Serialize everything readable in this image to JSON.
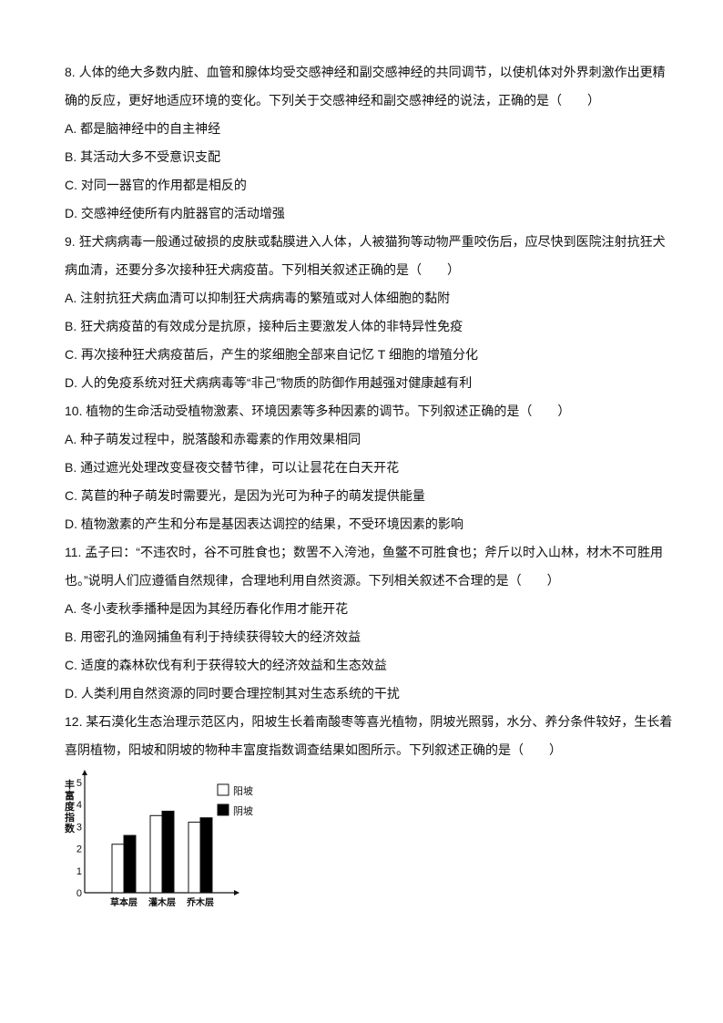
{
  "questions": [
    {
      "stem": "8. 人体的绝大多数内脏、血管和腺体均受交感神经和副交感神经的共同调节，以使机体对外界刺激作出更精确的反应，更好地适应环境的变化。下列关于交感神经和副交感神经的说法，正确的是（　　）",
      "options": [
        "A. 都是脑神经中的自主神经",
        "B. 其活动大多不受意识支配",
        "C. 对同一器官的作用都是相反的",
        "D. 交感神经使所有内脏器官的活动增强"
      ]
    },
    {
      "stem": "9. 狂犬病病毒一般通过破损的皮肤或黏膜进入人体，人被猫狗等动物严重咬伤后，应尽快到医院注射抗狂犬病血清，还要分多次接种狂犬病疫苗。下列相关叙述正确的是（　　）",
      "options": [
        "A. 注射抗狂犬病血清可以抑制狂犬病病毒的繁殖或对人体细胞的黏附",
        "B. 狂犬病疫苗的有效成分是抗原，接种后主要激发人体的非特异性免疫",
        "C. 再次接种狂犬病疫苗后，产生的浆细胞全部来自记忆 T 细胞的增殖分化",
        "D. 人的免疫系统对狂犬病病毒等“非己”物质的防御作用越强对健康越有利"
      ]
    },
    {
      "stem": "10. 植物的生命活动受植物激素、环境因素等多种因素的调节。下列叙述正确的是（　　）",
      "options": [
        "A. 种子萌发过程中，脱落酸和赤霉素的作用效果相同",
        "B. 通过遮光处理改变昼夜交替节律，可以让昙花在白天开花",
        "C. 莴苣的种子萌发时需要光，是因为光可为种子的萌发提供能量",
        "D. 植物激素的产生和分布是基因表达调控的结果，不受环境因素的影响"
      ]
    },
    {
      "stem": "11. 孟子曰：“不违农时，谷不可胜食也；数罟不入洿池，鱼鳖不可胜食也；斧斤以时入山林，材木不可胜用也。”说明人们应遵循自然规律，合理地利用自然资源。下列相关叙述不合理的是（　　）",
      "options": [
        "A. 冬小麦秋季播种是因为其经历春化作用才能开花",
        "B. 用密孔的渔网捕鱼有利于持续获得较大的经济效益",
        "C. 适度的森林砍伐有利于获得较大的经济效益和生态效益",
        "D. 人类利用自然资源的同时要合理控制其对生态系统的干扰"
      ]
    },
    {
      "stem": "12. 某石漠化生态治理示范区内，阳坡生长着南酸枣等喜光植物，阴坡光照弱，水分、养分条件较好，生长着喜阴植物，阳坡和阴坡的物种丰富度指数调查结果如图所示。下列叙述正确的是（　　）",
      "options": []
    }
  ],
  "chart_data": {
    "type": "bar",
    "ylabel": "丰富度指数",
    "categories": [
      "草本层",
      "灌木层",
      "乔木层"
    ],
    "series": [
      {
        "name": "阳坡",
        "values": [
          2.2,
          3.5,
          3.2
        ],
        "color": "#ffffff"
      },
      {
        "name": "阴坡",
        "values": [
          2.6,
          3.7,
          3.4
        ],
        "color": "#000000"
      }
    ],
    "yticks": [
      "0",
      "1",
      "2",
      "3",
      "4",
      "5"
    ],
    "ylim": [
      0,
      5
    ],
    "legend": "top-right",
    "grid": false
  }
}
